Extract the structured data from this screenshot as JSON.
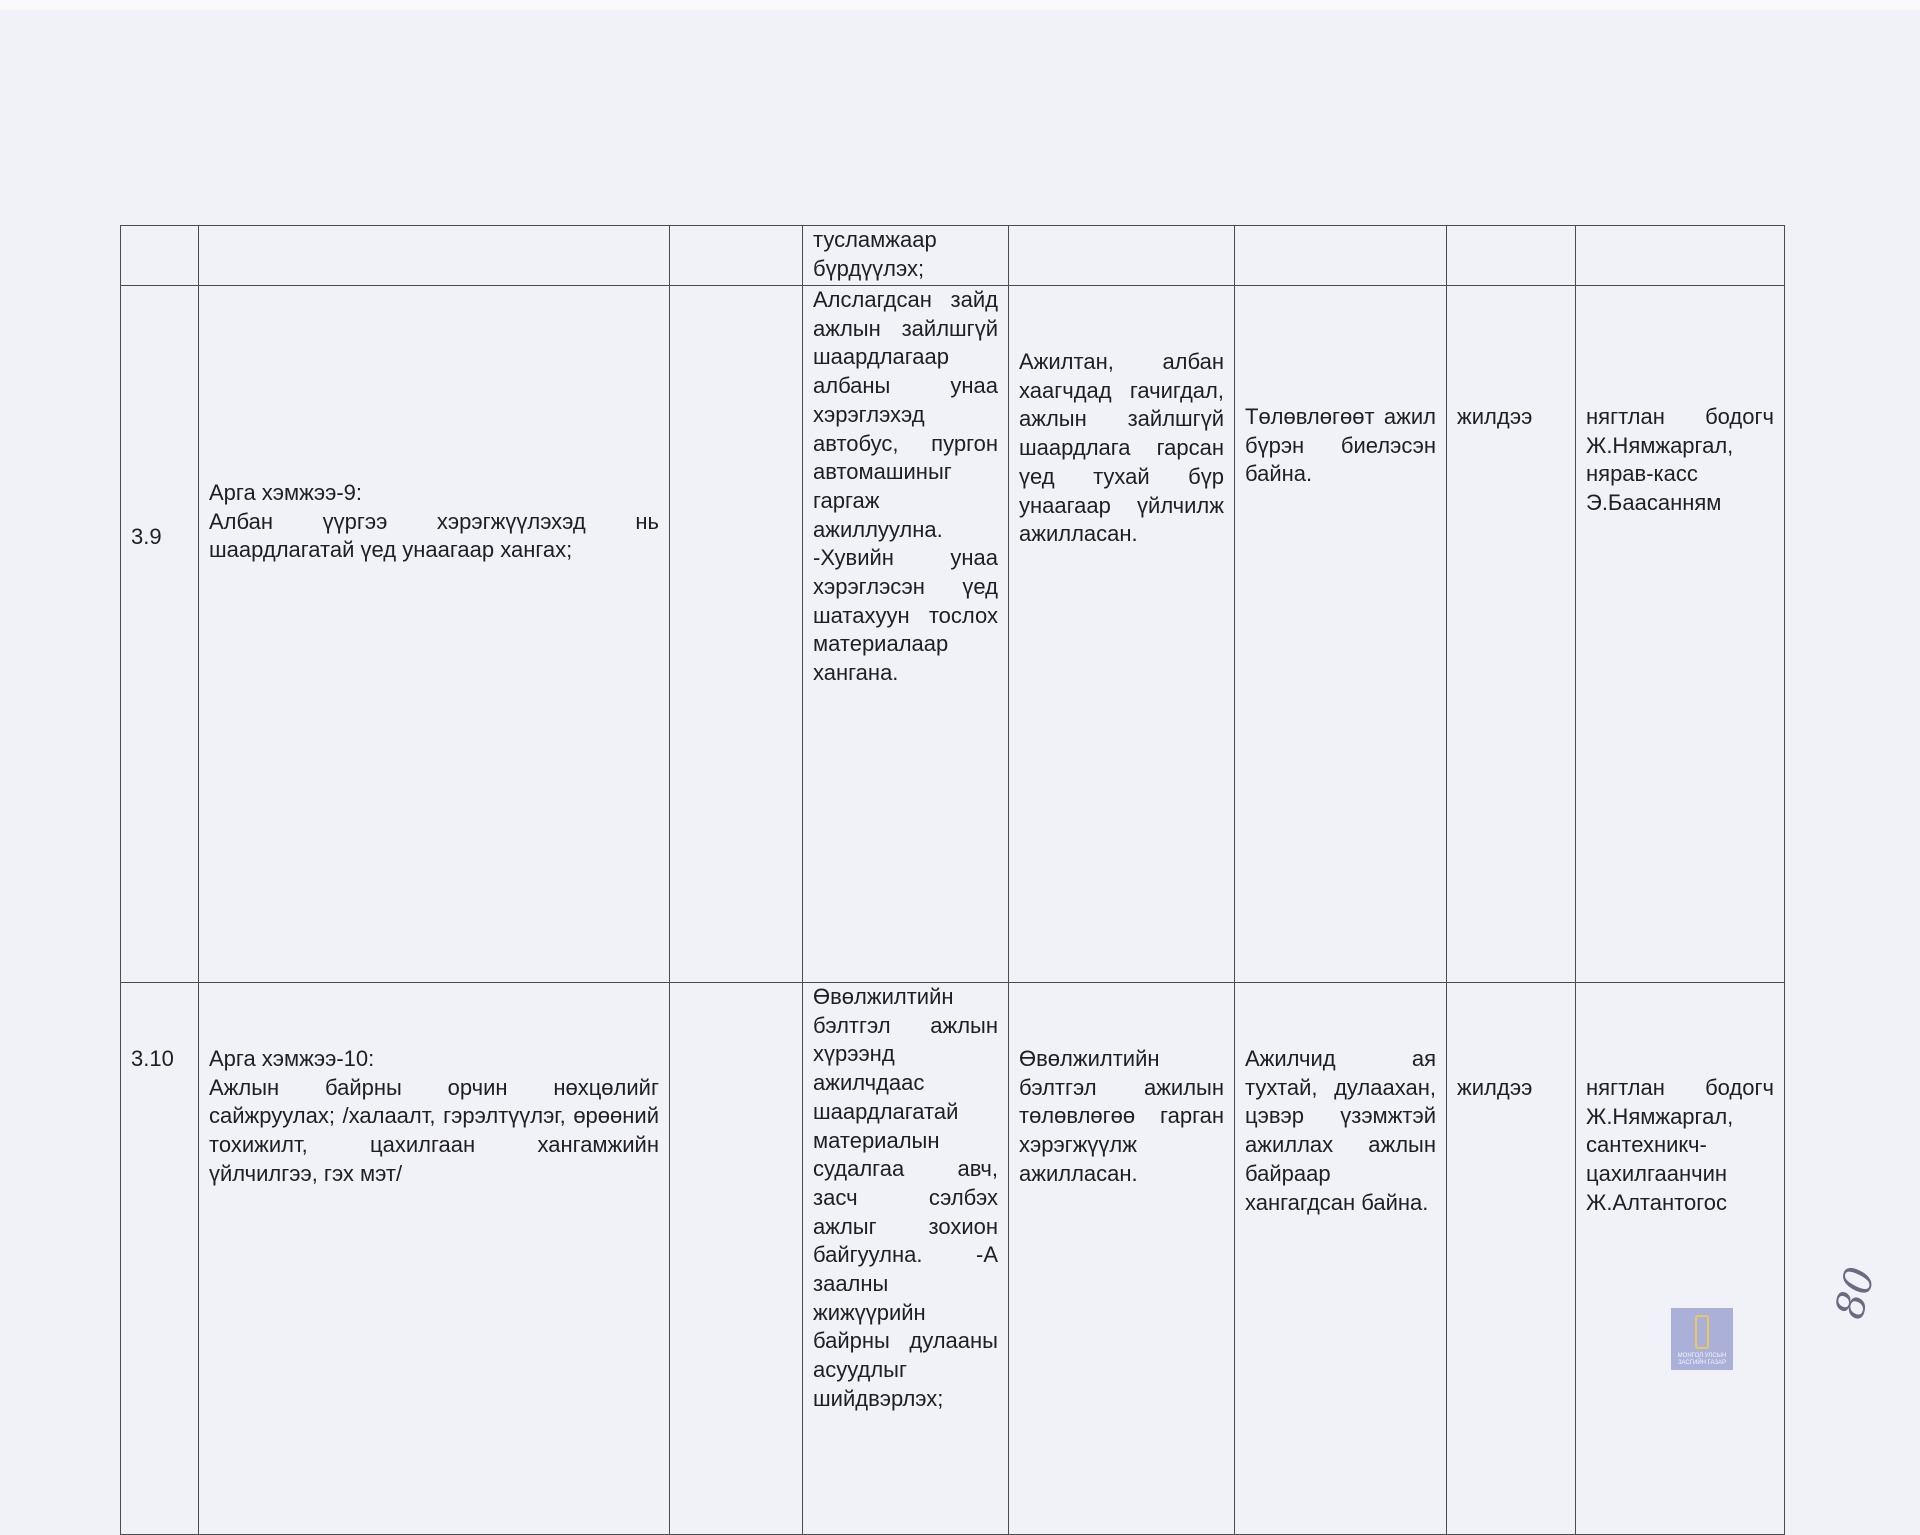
{
  "table": {
    "rows": [
      {
        "num": "",
        "measure": "",
        "col3": "",
        "actions": "тусламжаар бүрдүүлэх;",
        "result": "",
        "assessment": "",
        "period": "",
        "responsible": ""
      },
      {
        "num": "3.9",
        "measure_title": "Арга хэмжээ-9:",
        "measure": "Албан үүргээ хэрэгжүүлэхэд нь шаардлагатай үед унаагаар хангах;",
        "col3": "",
        "actions": "Алслагдсан зайд ажлын зайлшгүй шаардлагаар албаны унаа хэрэглэхэд автобус, пургон автомашиныг гаргаж ажиллуулна. -Хувийн унаа хэрэглэсэн үед шатахуун тослох материалаар хангана.",
        "result": "Ажилтан, албан хаагчдад гачигдал, ажлын зайлшгүй шаардлага гарсан үед тухай бүр унаагаар үйлчилж ажилласан.",
        "assessment": "Төлөвлөгөөт ажил бүрэн биелэсэн байна.",
        "period": "жилдээ",
        "responsible": "нягтлан бодогч Ж.Нямжаргал, нярав-касс Э.Баасанням"
      },
      {
        "num": "3.10",
        "measure_title": "Арга хэмжээ-10:",
        "measure": "Ажлын байрны орчин нөхцөлийг сайжруулах; /халаалт, гэрэлтүүлэг, өрөөний тохижилт, цахилгаан хангамжийн үйлчилгээ, гэх мэт/",
        "col3": "",
        "actions": "Өвөлжилтийн бэлтгэл ажлын хүрээнд ажилчдаас шаардлагатай материалын судалгаа авч, засч сэлбэх ажлыг зохион байгуулна. -А заалны жижүүрийн байрны дулааны асуудлыг шийдвэрлэх;",
        "result": "Өвөлжилтийн бэлтгэл ажилын төлөвлөгөө гарган хэрэгжүүлж ажилласан.",
        "assessment": "Ажилчид ая тухтай, дулаахан, цэвэр үзэмжтэй ажиллах ажлын байраар хангагдсан байна.",
        "period": "жилдээ",
        "responsible": "нягтлан бодогч Ж.Нямжаргал, сантехникч-цахилгаанчин Ж.Алтантогос"
      }
    ]
  },
  "logo": {
    "text": "МОНГОЛ УЛСЫН ЗАСГИЙН ГАЗАР",
    "color": "#aab0d8"
  },
  "page_number": "80"
}
